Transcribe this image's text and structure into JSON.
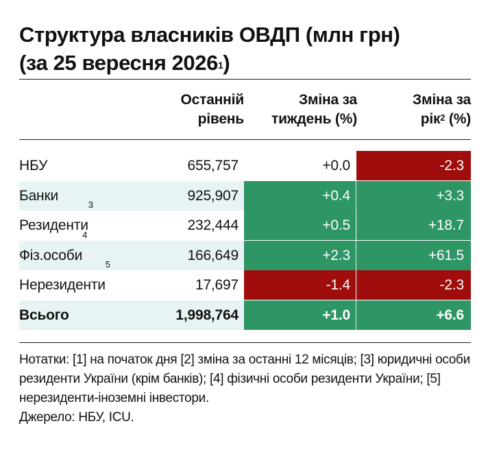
{
  "title": {
    "line1": "Структура власників ОВДП (млн грн)",
    "line2": "(за 25 вересня 2026",
    "line2_sup": "1",
    "line2_end": ")"
  },
  "chart_data": {
    "type": "table",
    "columns": [
      {
        "line1": "",
        "line2": ""
      },
      {
        "line1": "Останній",
        "line2": "рівень"
      },
      {
        "line1": "Зміна за",
        "line2": "тиждень (%)"
      },
      {
        "line1": "Зміна за",
        "line2": "рік",
        "sup": "2",
        "line2_end": " (%)"
      }
    ],
    "rows": [
      {
        "name": "НБУ",
        "sup": "",
        "level": "655,757",
        "week": "+0.0",
        "year": "-2.3",
        "week_color": "#ffffff",
        "year_color": "#a00d0d",
        "week_text": "#111111",
        "year_text": "#ffffff",
        "bg": "#ffffff",
        "bold": false
      },
      {
        "name": "Банки",
        "sup": "",
        "level": "925,907",
        "week": "+0.4",
        "year": "+3.3",
        "week_color": "#2e9565",
        "year_color": "#2e9565",
        "week_text": "#ffffff",
        "year_text": "#ffffff",
        "bg": "#e7f3f4",
        "bold": false
      },
      {
        "name": "Резиденти",
        "sup": "3",
        "level": "232,444",
        "week": "+0.5",
        "year": "+18.7",
        "week_color": "#2e9565",
        "year_color": "#2e9565",
        "week_text": "#ffffff",
        "year_text": "#ffffff",
        "bg": "#ffffff",
        "bold": false
      },
      {
        "name": "Фіз.особи",
        "sup": "4",
        "level": "166,649",
        "week": "+2.3",
        "year": "+61.5",
        "week_color": "#2e9565",
        "year_color": "#2e9565",
        "week_text": "#ffffff",
        "year_text": "#ffffff",
        "bg": "#e7f3f4",
        "bold": false
      },
      {
        "name": "Нерезиденти",
        "sup": "5",
        "level": "17,697",
        "week": "-1.4",
        "year": "-2.3",
        "week_color": "#a00d0d",
        "year_color": "#a00d0d",
        "week_text": "#ffffff",
        "year_text": "#ffffff",
        "bg": "#ffffff",
        "bold": false
      },
      {
        "name": "Всього",
        "sup": "",
        "level": "1,998,764",
        "week": "+1.0",
        "year": "+6.6",
        "week_color": "#2e9565",
        "year_color": "#2e9565",
        "week_text": "#ffffff",
        "year_text": "#ffffff",
        "bg": "#e7f3f4",
        "bold": true
      }
    ]
  },
  "notes": {
    "text": "Нотатки: [1] на початок дня [2] зміна за останні 12 місяців; [3] юридичні особи  резиденти України (крім банків); [4] фізичні особи резиденти України; [5] нерезиденти-іноземні інвестори.",
    "source": "Джерело: НБУ, ICU."
  },
  "colors": {
    "positive": "#2e9565",
    "negative": "#a00d0d",
    "stripe": "#e7f3f4",
    "rule": "#1a1a1a"
  }
}
